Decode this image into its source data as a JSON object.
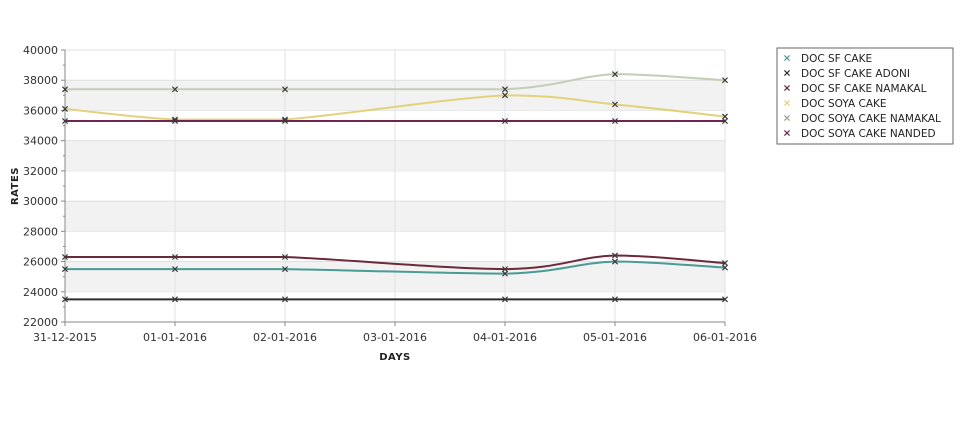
{
  "chart_data": {
    "type": "line",
    "title": "",
    "xlabel": "DAYS",
    "ylabel": "RATES",
    "categories": [
      "31-12-2015",
      "01-01-2016",
      "02-01-2016",
      "03-01-2016",
      "04-01-2016",
      "05-01-2016",
      "06-01-2016"
    ],
    "ylim": [
      22000,
      40000
    ],
    "ytick_step": 2000,
    "grid": "alternating horizontal bands with vertical gridlines",
    "legend_position": "right",
    "series": [
      {
        "name": "DOC SF CAKE",
        "color": "#4a9a96",
        "values": [
          25500,
          25500,
          25500,
          null,
          25200,
          26000,
          25600
        ]
      },
      {
        "name": "DOC SF CAKE ADONI",
        "color": "#2e2e2e",
        "values": [
          23500,
          23500,
          23500,
          null,
          23500,
          23500,
          23500
        ]
      },
      {
        "name": "DOC SF CAKE NAMAKAL",
        "color": "#6b2a3a",
        "values": [
          26300,
          26300,
          26300,
          null,
          25500,
          26400,
          25900
        ]
      },
      {
        "name": "DOC SOYA CAKE",
        "color": "#e2d27c",
        "values": [
          36100,
          35400,
          35400,
          null,
          37000,
          36400,
          35600
        ]
      },
      {
        "name": "DOC SOYA CAKE NAMAKAL",
        "color": "#c4cdb6",
        "values": [
          37400,
          37400,
          37400,
          null,
          37400,
          38400,
          38000
        ]
      },
      {
        "name": "DOC SOYA CAKE NANDED",
        "color": "#6e2552",
        "values": [
          35300,
          35300,
          35300,
          null,
          35300,
          35300,
          35300
        ]
      }
    ]
  }
}
